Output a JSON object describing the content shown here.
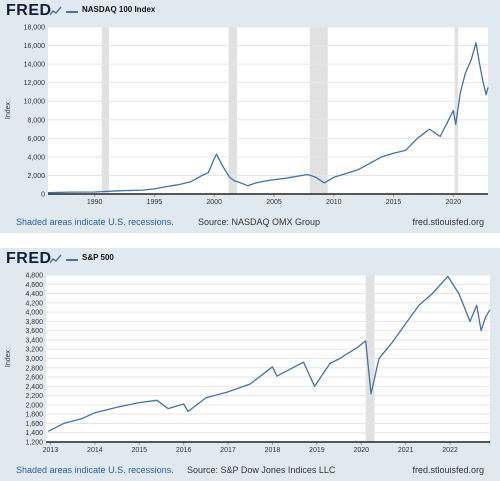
{
  "charts": [
    {
      "logo": "FRED",
      "legend": "NASDAQ 100 Index",
      "footer_left": "Shaded areas indicate U.S. recessions.",
      "footer_source": "Source: NASDAQ OMX Group",
      "footer_right": "fred.stlouisfed.org"
    },
    {
      "logo": "FRED",
      "legend": "S&P 500",
      "footer_left": "Shaded areas indicate U.S. recessions.",
      "footer_source": "Source: S&P Dow Jones Indices LLC",
      "footer_right": "fred.stlouisfed.org"
    }
  ],
  "colors": {
    "line": "#4572a7",
    "recession": "#e1e1e1",
    "panel": "#e1e9f0"
  },
  "chart_data": [
    {
      "type": "line",
      "title": "",
      "xlabel": "",
      "ylabel": "Index",
      "ylim": [
        0,
        18000
      ],
      "xlim": [
        1986.1,
        2022.9
      ],
      "yticks": [
        0,
        2000,
        4000,
        6000,
        8000,
        10000,
        12000,
        14000,
        16000,
        18000
      ],
      "ytick_labels": [
        "0",
        "2,000",
        "4,000",
        "6,000",
        "8,000",
        "10,000",
        "12,000",
        "14,000",
        "16,000",
        "18,000"
      ],
      "xticks": [
        1990,
        1995,
        2000,
        2005,
        2010,
        2015,
        2020
      ],
      "xtick_labels": [
        "1990",
        "1995",
        "2000",
        "2005",
        "2010",
        "2015",
        "2020"
      ],
      "recessions": [
        [
          1990.6,
          1991.2
        ],
        [
          2001.2,
          2001.9
        ],
        [
          2008.0,
          2009.5
        ],
        [
          2020.1,
          2020.4
        ]
      ],
      "series": [
        {
          "x": [
            1986.1,
            1988,
            1990,
            1992,
            1994,
            1995,
            1996,
            1997,
            1998,
            1999,
            1999.5,
            2000.0,
            2000.2,
            2000.5,
            2000.8,
            2001.0,
            2001.3,
            2001.7,
            2002.0,
            2002.8,
            2003.5,
            2004.5,
            2006,
            2007.8,
            2008.5,
            2009.2,
            2010,
            2011,
            2012,
            2013,
            2014,
            2015,
            2016,
            2017,
            2018,
            2018.9,
            2019.5,
            2020.0,
            2020.2,
            2020.6,
            2021.0,
            2021.5,
            2021.9,
            2022.2,
            2022.5,
            2022.75,
            2022.9
          ],
          "y": [
            150,
            200,
            220,
            350,
            420,
            550,
            800,
            1000,
            1300,
            2000,
            2300,
            3800,
            4300,
            3500,
            2800,
            2400,
            1800,
            1400,
            1300,
            900,
            1200,
            1450,
            1700,
            2100,
            1800,
            1200,
            1800,
            2200,
            2600,
            3300,
            4000,
            4400,
            4700,
            6000,
            7000,
            6200,
            7700,
            9000,
            7500,
            11000,
            13000,
            14500,
            16300,
            14000,
            12000,
            10700,
            11500
          ]
        }
      ]
    },
    {
      "type": "line",
      "title": "",
      "xlabel": "",
      "ylabel": "Index",
      "ylim": [
        1200,
        4800
      ],
      "xlim": [
        2012.9,
        2022.9
      ],
      "yticks": [
        1200,
        1400,
        1600,
        1800,
        2000,
        2200,
        2400,
        2600,
        2800,
        3000,
        3200,
        3400,
        3600,
        3800,
        4000,
        4200,
        4400,
        4600,
        4800
      ],
      "ytick_labels": [
        "1,200",
        "1,400",
        "1,600",
        "1,800",
        "2,000",
        "2,200",
        "2,400",
        "2,600",
        "2,800",
        "3,000",
        "3,200",
        "3,400",
        "3,600",
        "3,800",
        "4,000",
        "4,200",
        "4,400",
        "4,600",
        "4,800"
      ],
      "xticks": [
        2013,
        2014,
        2015,
        2016,
        2017,
        2018,
        2019,
        2020,
        2021,
        2022
      ],
      "xtick_labels": [
        "2013",
        "2014",
        "2015",
        "2016",
        "2017",
        "2018",
        "2019",
        "2020",
        "2021",
        "2022"
      ],
      "recessions": [
        [
          2020.1,
          2020.3
        ]
      ],
      "series": [
        {
          "x": [
            2012.95,
            2013.3,
            2013.7,
            2014.0,
            2014.5,
            2015.0,
            2015.4,
            2015.65,
            2016.0,
            2016.1,
            2016.5,
            2017.0,
            2017.5,
            2018.0,
            2018.1,
            2018.7,
            2018.95,
            2019.3,
            2019.5,
            2019.9,
            2020.1,
            2020.22,
            2020.4,
            2020.7,
            2021.0,
            2021.3,
            2021.6,
            2021.95,
            2022.2,
            2022.45,
            2022.6,
            2022.7,
            2022.8,
            2022.9
          ],
          "y": [
            1430,
            1600,
            1700,
            1830,
            1950,
            2050,
            2100,
            1920,
            2020,
            1860,
            2150,
            2280,
            2450,
            2820,
            2620,
            2920,
            2400,
            2900,
            2990,
            3230,
            3380,
            2240,
            3000,
            3350,
            3750,
            4150,
            4400,
            4770,
            4400,
            3800,
            4150,
            3600,
            3900,
            4050
          ]
        }
      ]
    }
  ]
}
